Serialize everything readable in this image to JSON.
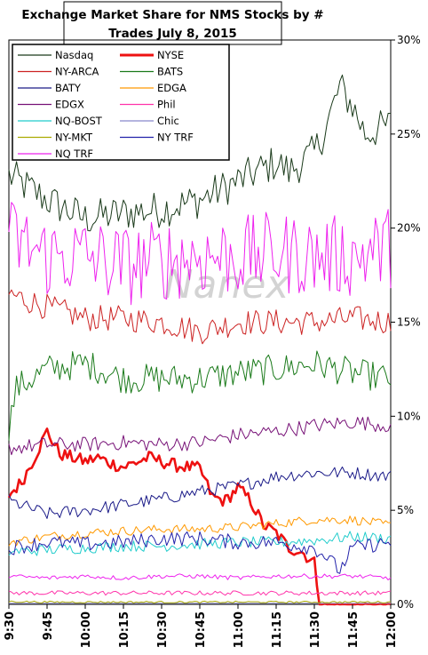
{
  "chart_data": {
    "type": "line",
    "title": "Exchange Market Share for NMS Stocks by # Trades July 8, 2015",
    "title_lines": [
      "Exchange Market Share for NMS Stocks by #",
      "Trades July 8, 2015"
    ],
    "watermark": "Nanex",
    "xlabel": "",
    "ylabel": "",
    "x_ticks": [
      "9:30",
      "9:45",
      "10:00",
      "10:15",
      "10:30",
      "10:45",
      "11:00",
      "11:15",
      "11:30",
      "11:45",
      "12:00"
    ],
    "y_ticks": [
      "0%",
      "5%",
      "10%",
      "15%",
      "20%",
      "25%",
      "30%"
    ],
    "xlim": [
      "9:30",
      "12:00"
    ],
    "ylim": [
      0,
      30
    ],
    "y_unit": "%",
    "grid": false,
    "legend_position": "top-left",
    "series": [
      {
        "name": "Nasdaq",
        "color": "#1a3a1a",
        "x": [
          "9:30",
          "9:45",
          "10:00",
          "10:15",
          "10:30",
          "10:45",
          "11:00",
          "11:15",
          "11:20",
          "11:30",
          "11:35",
          "11:40",
          "11:45",
          "11:50",
          "12:00"
        ],
        "values": [
          22.8,
          21.5,
          20.5,
          20.8,
          21.0,
          21.5,
          22.5,
          23.5,
          23.0,
          24.0,
          25.5,
          27.5,
          26.5,
          25.0,
          25.5
        ]
      },
      {
        "name": "NYSE",
        "color": "#ee1111",
        "bold": true,
        "x": [
          "9:30",
          "9:35",
          "9:40",
          "9:45",
          "9:50",
          "10:00",
          "10:05",
          "10:10",
          "10:15",
          "10:25",
          "10:35",
          "10:40",
          "10:45",
          "10:50",
          "10:55",
          "11:00",
          "11:05",
          "11:10",
          "11:15",
          "11:20",
          "11:25",
          "11:30",
          "11:32",
          "11:35",
          "11:45",
          "12:00"
        ],
        "values": [
          5.8,
          6.5,
          7.8,
          9.2,
          8.0,
          7.6,
          7.8,
          7.5,
          7.3,
          7.8,
          7.4,
          7.3,
          7.2,
          5.7,
          5.5,
          6.2,
          5.5,
          4.2,
          3.8,
          3.0,
          2.8,
          2.2,
          0.2,
          0.05,
          0.0,
          0.0
        ]
      },
      {
        "name": "NY-ARCA",
        "color": "#cc2222",
        "x": [
          "9:30",
          "9:45",
          "10:00",
          "10:15",
          "10:30",
          "10:45",
          "11:00",
          "11:15",
          "11:30",
          "11:45",
          "12:00"
        ],
        "values": [
          16.5,
          15.8,
          15.2,
          15.2,
          15.0,
          14.5,
          15.0,
          15.0,
          15.0,
          15.2,
          15.0
        ]
      },
      {
        "name": "BATS",
        "color": "#1a7a1a",
        "x": [
          "9:30",
          "9:33",
          "9:45",
          "10:00",
          "10:15",
          "10:30",
          "10:45",
          "11:00",
          "11:15",
          "11:30",
          "11:45",
          "12:00"
        ],
        "values": [
          9.5,
          11.5,
          12.5,
          12.8,
          12.0,
          12.0,
          12.0,
          12.3,
          12.5,
          12.8,
          12.3,
          12.0
        ]
      },
      {
        "name": "BATY",
        "color": "#1a1a88",
        "x": [
          "9:30",
          "9:45",
          "10:00",
          "10:15",
          "10:30",
          "10:45",
          "11:00",
          "11:15",
          "11:30",
          "11:45",
          "12:00"
        ],
        "values": [
          5.5,
          4.8,
          5.0,
          5.3,
          5.6,
          6.0,
          6.3,
          6.8,
          7.0,
          7.0,
          6.8
        ]
      },
      {
        "name": "EDGA",
        "color": "#ff9900",
        "x": [
          "9:30",
          "9:45",
          "10:00",
          "10:15",
          "10:30",
          "10:45",
          "11:00",
          "11:15",
          "11:30",
          "11:45",
          "12:00"
        ],
        "values": [
          3.3,
          3.6,
          3.8,
          3.9,
          4.0,
          4.0,
          4.1,
          4.3,
          4.5,
          4.5,
          4.2
        ]
      },
      {
        "name": "EDGX",
        "color": "#771177",
        "x": [
          "9:30",
          "9:45",
          "10:00",
          "10:15",
          "10:30",
          "10:45",
          "11:00",
          "11:15",
          "11:30",
          "11:45",
          "12:00"
        ],
        "values": [
          8.3,
          8.5,
          8.5,
          8.6,
          8.5,
          8.6,
          9.0,
          9.2,
          9.5,
          9.7,
          9.5
        ]
      },
      {
        "name": "Phil",
        "color": "#ff33aa",
        "x": [
          "9:30",
          "9:45",
          "10:00",
          "10:15",
          "10:30",
          "10:45",
          "11:00",
          "11:15",
          "11:30",
          "11:45",
          "12:00"
        ],
        "values": [
          0.6,
          0.6,
          0.6,
          0.6,
          0.6,
          0.6,
          0.6,
          0.6,
          0.6,
          0.6,
          0.6
        ]
      },
      {
        "name": "NQ-BOST",
        "color": "#22cccc",
        "x": [
          "9:30",
          "9:45",
          "10:00",
          "10:15",
          "10:30",
          "10:45",
          "11:00",
          "11:15",
          "11:30",
          "11:45",
          "12:00"
        ],
        "values": [
          2.8,
          2.9,
          3.0,
          3.1,
          3.1,
          3.2,
          3.3,
          3.3,
          3.4,
          3.6,
          3.5
        ]
      },
      {
        "name": "Chic",
        "color": "#8888cc",
        "x": [
          "9:30",
          "12:00"
        ],
        "values": [
          0.05,
          0.05
        ]
      },
      {
        "name": "NY-MKT",
        "color": "#aaaa00",
        "x": [
          "9:30",
          "9:45",
          "10:00",
          "10:15",
          "10:30",
          "10:45",
          "11:00",
          "11:15",
          "11:30",
          "11:45",
          "12:00"
        ],
        "values": [
          0.15,
          0.12,
          0.12,
          0.12,
          0.12,
          0.12,
          0.12,
          0.12,
          0.12,
          0.12,
          0.12
        ]
      },
      {
        "name": "NY TRF",
        "color": "#2222aa",
        "x": [
          "9:30",
          "9:45",
          "10:00",
          "10:15",
          "10:30",
          "10:45",
          "11:00",
          "11:15",
          "11:30",
          "11:35",
          "11:40",
          "11:45",
          "12:00"
        ],
        "values": [
          3.0,
          3.3,
          3.2,
          3.3,
          3.5,
          3.5,
          3.3,
          3.3,
          3.0,
          2.5,
          1.8,
          3.0,
          3.3
        ]
      },
      {
        "name": "NQ TRF",
        "color": "#ee22ee",
        "x": [
          "9:30",
          "9:45",
          "10:00",
          "10:15",
          "10:30",
          "10:45",
          "11:00",
          "11:15",
          "11:30",
          "11:45",
          "12:00"
        ],
        "values": [
          19.5,
          18.5,
          18.5,
          18.0,
          18.3,
          18.5,
          18.5,
          18.7,
          18.5,
          18.5,
          19.0
        ]
      },
      {
        "name": "",
        "color": "#ee22ee",
        "thin": true,
        "x": [
          "9:30",
          "9:45",
          "10:00",
          "10:15",
          "10:30",
          "10:45",
          "11:00",
          "11:15",
          "11:30",
          "11:45",
          "12:00"
        ],
        "values": [
          1.5,
          1.4,
          1.5,
          1.4,
          1.5,
          1.5,
          1.4,
          1.5,
          1.5,
          1.5,
          1.4
        ]
      }
    ],
    "legend_entries": [
      "Nasdaq",
      "NYSE",
      "NY-ARCA",
      "BATS",
      "BATY",
      "EDGA",
      "EDGX",
      "Phil",
      "NQ-BOST",
      "Chic",
      "NY-MKT",
      "NY TRF",
      "NQ TRF"
    ]
  }
}
